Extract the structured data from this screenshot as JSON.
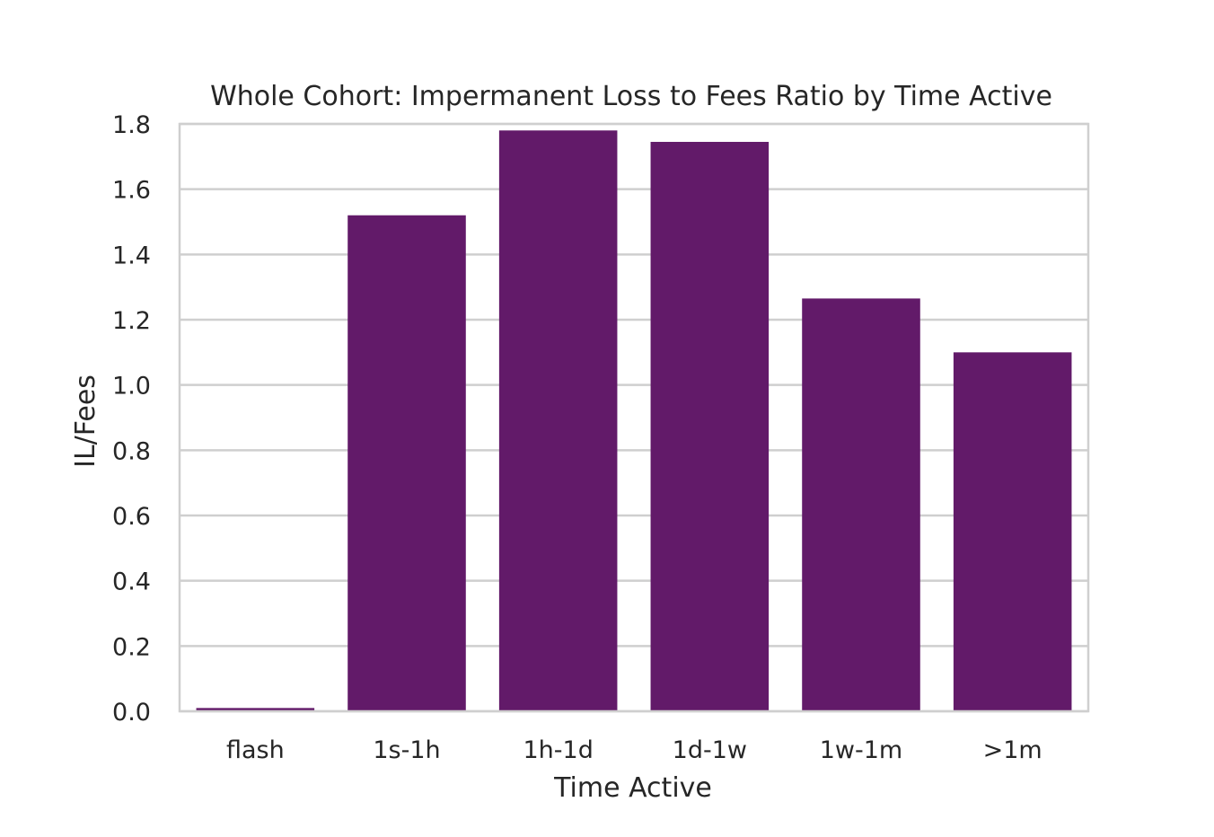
{
  "chart_data": {
    "type": "bar",
    "title": "Whole Cohort: Impermanent Loss to Fees Ratio by Time Active",
    "xlabel": "Time Active",
    "ylabel": "IL/Fees",
    "categories": [
      "flash",
      "1s-1h",
      "1h-1d",
      "1d-1w",
      "1w-1m",
      ">1m"
    ],
    "values": [
      0.01,
      1.52,
      1.78,
      1.745,
      1.265,
      1.1
    ],
    "ylim": [
      0,
      1.8
    ],
    "yticks": [
      "0.0",
      "0.2",
      "0.4",
      "0.6",
      "0.8",
      "1.0",
      "1.2",
      "1.4",
      "1.6",
      "1.8"
    ],
    "grid": "horizontal",
    "bar_color": "#621a69",
    "grid_color": "#cfcfcf",
    "background": "#ffffff"
  }
}
